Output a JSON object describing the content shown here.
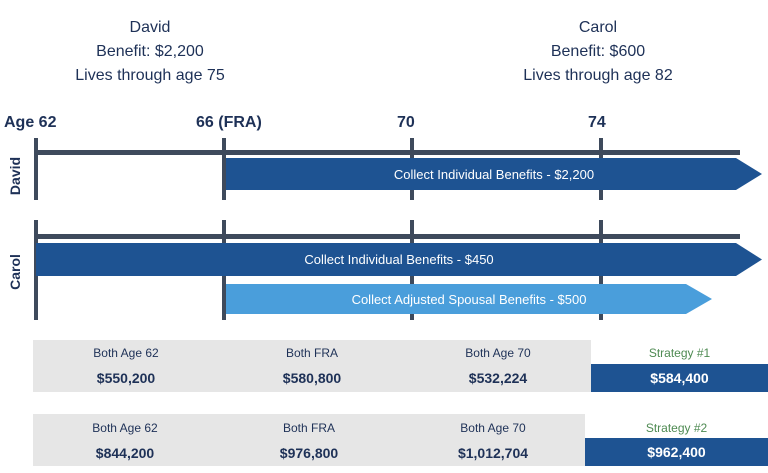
{
  "people": [
    {
      "name": "David",
      "benefit": "Benefit:  $2,200",
      "lives": "Lives through age 75"
    },
    {
      "name": "Carol",
      "benefit": "Benefit:  $600",
      "lives": "Lives through age 82"
    }
  ],
  "ages": [
    "Age 62",
    "66 (FRA)",
    "70",
    "74"
  ],
  "rows": {
    "david": "David",
    "carol": "Carol"
  },
  "arrows": {
    "david_individual": "Collect Individual Benefits - $2,200",
    "carol_individual": "Collect Individual Benefits - $450",
    "carol_spousal": "Collect Adjusted Spousal Benefits - $500"
  },
  "colors": {
    "dark_arrow": "#1e5392",
    "light_arrow": "#4a9edb",
    "strategy_label": "#4e8a52"
  },
  "tables": [
    {
      "headers": [
        "Both Age 62",
        "Both FRA",
        "Both Age 70"
      ],
      "values": [
        "$550,200",
        "$580,800",
        "$532,224"
      ],
      "strategy_label": "Strategy #1",
      "strategy_value": "$584,400"
    },
    {
      "headers": [
        "Both Age 62",
        "Both FRA",
        "Both Age 70"
      ],
      "values": [
        "$844,200",
        "$976,800",
        "$1,012,704"
      ],
      "strategy_label": "Strategy #2",
      "strategy_value": "$962,400"
    }
  ]
}
